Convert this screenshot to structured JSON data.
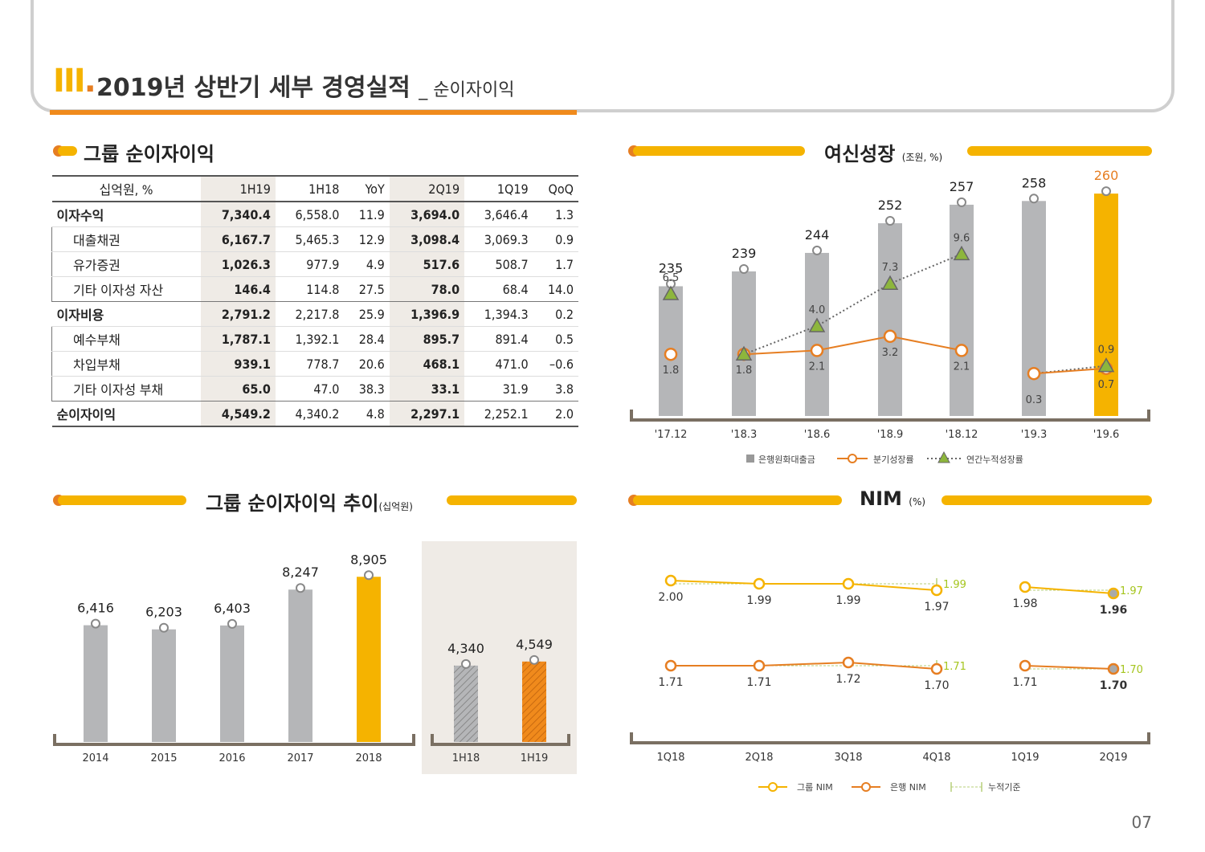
{
  "header": {
    "roman": "III",
    "title": "2019년 상반기 세부 경영실적",
    "subtitle": "_ 순이자이익"
  },
  "page_number": "07",
  "colors": {
    "accent": "#f5b300",
    "orange": "#e67e22",
    "gray": "#b5b6b8",
    "green": "#8db63c"
  },
  "table": {
    "title": "그룹 순이자이익",
    "headers": [
      "십억원, %",
      "1H19",
      "1H18",
      "YoY",
      "2Q19",
      "1Q19",
      "QoQ"
    ],
    "rows": [
      {
        "label": "이자수익",
        "level": 0,
        "values": [
          "7,340.4",
          "6,558.0",
          "11.9",
          "3,694.0",
          "3,646.4",
          "1.3"
        ]
      },
      {
        "label": "대출채권",
        "level": 1,
        "values": [
          "6,167.7",
          "5,465.3",
          "12.9",
          "3,098.4",
          "3,069.3",
          "0.9"
        ]
      },
      {
        "label": "유가증권",
        "level": 1,
        "values": [
          "1,026.3",
          "977.9",
          "4.9",
          "517.6",
          "508.7",
          "1.7"
        ]
      },
      {
        "label": "기타 이자성 자산",
        "level": 1,
        "values": [
          "146.4",
          "114.8",
          "27.5",
          "78.0",
          "68.4",
          "14.0"
        ]
      },
      {
        "label": "이자비용",
        "level": 0,
        "values": [
          "2,791.2",
          "2,217.8",
          "25.9",
          "1,396.9",
          "1,394.3",
          "0.2"
        ]
      },
      {
        "label": "예수부채",
        "level": 1,
        "values": [
          "1,787.1",
          "1,392.1",
          "28.4",
          "895.7",
          "891.4",
          "0.5"
        ]
      },
      {
        "label": "차입부채",
        "level": 1,
        "values": [
          "939.1",
          "778.7",
          "20.6",
          "468.1",
          "471.0",
          "-0.6"
        ]
      },
      {
        "label": "기타 이자성 부채",
        "level": 1,
        "values": [
          "65.0",
          "47.0",
          "38.3",
          "33.1",
          "31.9",
          "3.8"
        ]
      },
      {
        "label": "순이자이익",
        "level": 0,
        "values": [
          "4,549.2",
          "4,340.2",
          "4.8",
          "2,297.1",
          "2,252.1",
          "2.0"
        ]
      }
    ]
  },
  "chart_data": [
    {
      "type": "bar",
      "title": "여신성장",
      "unit": "(조원, %)",
      "categories": [
        "'17.12",
        "'18.3",
        "'18.6",
        "'18.9",
        "'18.12",
        "'19.3",
        "'19.6"
      ],
      "series": [
        {
          "name": "은행원화대출금",
          "type": "bar",
          "values": [
            235,
            239,
            244,
            252,
            257,
            258,
            260
          ]
        },
        {
          "name": "분기성장률",
          "type": "line",
          "values": [
            1.8,
            1.8,
            2.1,
            3.2,
            2.1,
            0.3,
            0.7
          ]
        },
        {
          "name": "연간누적성장률",
          "type": "line-dotted",
          "values": [
            6.5,
            1.8,
            4.0,
            7.3,
            9.6,
            0.3,
            0.9
          ]
        }
      ],
      "value_labels": [
        "235",
        "239",
        "244",
        "252",
        "257",
        "258",
        "260"
      ],
      "quarter_labels": [
        "1.8",
        "1.8",
        "2.1",
        "3.2",
        "2.1",
        "0.3",
        "0.7"
      ],
      "annual_labels": [
        "6.5",
        "4.0",
        "7.3",
        "9.6",
        "0.9"
      ]
    },
    {
      "type": "bar",
      "title": "그룹 순이자이익 추이",
      "unit": "(십억원)",
      "categories": [
        "2014",
        "2015",
        "2016",
        "2017",
        "2018",
        "1H18",
        "1H19"
      ],
      "values": [
        6416,
        6203,
        6403,
        8247,
        8905,
        4340,
        4549
      ],
      "labels": [
        "6,416",
        "6,203",
        "6,403",
        "8,247",
        "8,905",
        "4,340",
        "4,549"
      ]
    },
    {
      "type": "line",
      "title": "NIM",
      "unit": "(%)",
      "categories": [
        "1Q18",
        "2Q18",
        "3Q18",
        "4Q18",
        "1Q19",
        "2Q19"
      ],
      "series": [
        {
          "name": "그룹 NIM",
          "values": [
            2.0,
            1.99,
            1.99,
            1.97,
            1.98,
            1.96
          ],
          "labels": [
            "2.00",
            "1.99",
            "1.99",
            "1.97",
            "1.98",
            "1.96"
          ]
        },
        {
          "name": "은행 NIM",
          "values": [
            1.71,
            1.71,
            1.72,
            1.7,
            1.71,
            1.7
          ],
          "labels": [
            "1.71",
            "1.71",
            "1.72",
            "1.70",
            "1.71",
            "1.70"
          ]
        }
      ],
      "cumulative": {
        "name": "누적기준",
        "group_2018": "1.99",
        "group_1H19": "1.97",
        "bank_2018": "1.71",
        "bank_1H19": "1.70"
      }
    }
  ]
}
